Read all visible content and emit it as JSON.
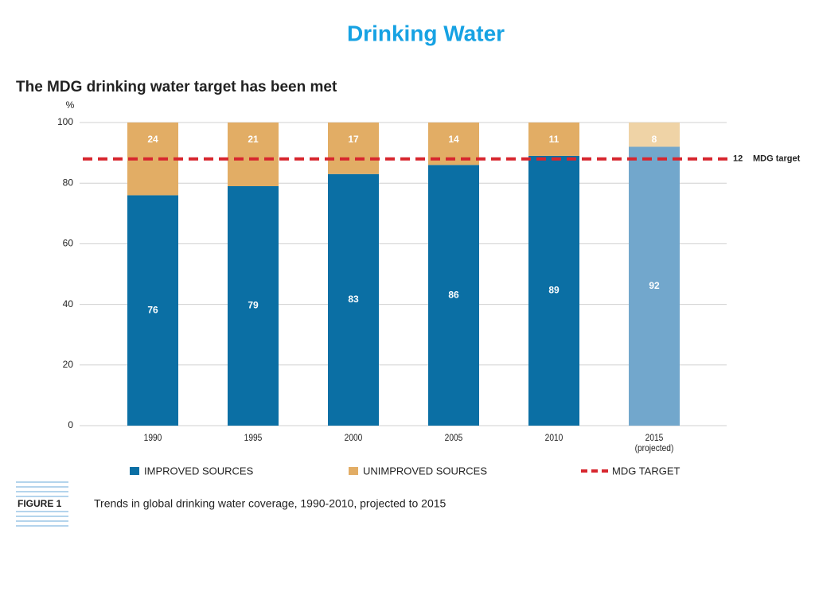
{
  "chart_data": {
    "type": "stacked_bar",
    "page_title": "Drinking Water",
    "title": "The MDG drinking water target has been met",
    "y_label": "%",
    "categories": [
      "1990",
      "1995",
      "2000",
      "2005",
      "2010",
      "2015\n(projected)"
    ],
    "series": [
      {
        "name": "IMPROVED SOURCES",
        "color": "#0b6fa4",
        "colors": [
          "#0b6fa4",
          "#0b6fa4",
          "#0b6fa4",
          "#0b6fa4",
          "#0b6fa4",
          "#72a7cc"
        ],
        "values": [
          76,
          79,
          83,
          86,
          89,
          92
        ]
      },
      {
        "name": "UNIMPROVED SOURCES",
        "color": "#e2ad65",
        "colors": [
          "#e2ad65",
          "#e2ad65",
          "#e2ad65",
          "#e2ad65",
          "#e2ad65",
          "#efd3a6"
        ],
        "values": [
          24,
          21,
          17,
          14,
          11,
          8
        ]
      }
    ],
    "target": {
      "name": "MDG TARGET",
      "value": 88,
      "label": 12,
      "text": "MDG target",
      "color": "#d7262e"
    },
    "ylim": [
      0,
      100
    ],
    "yticks": [
      0,
      20,
      40,
      60,
      80,
      100
    ],
    "grid": true,
    "figure_label": "FIGURE 1",
    "caption": "Trends in global drinking water coverage, 1990-2010, projected to 2015"
  }
}
